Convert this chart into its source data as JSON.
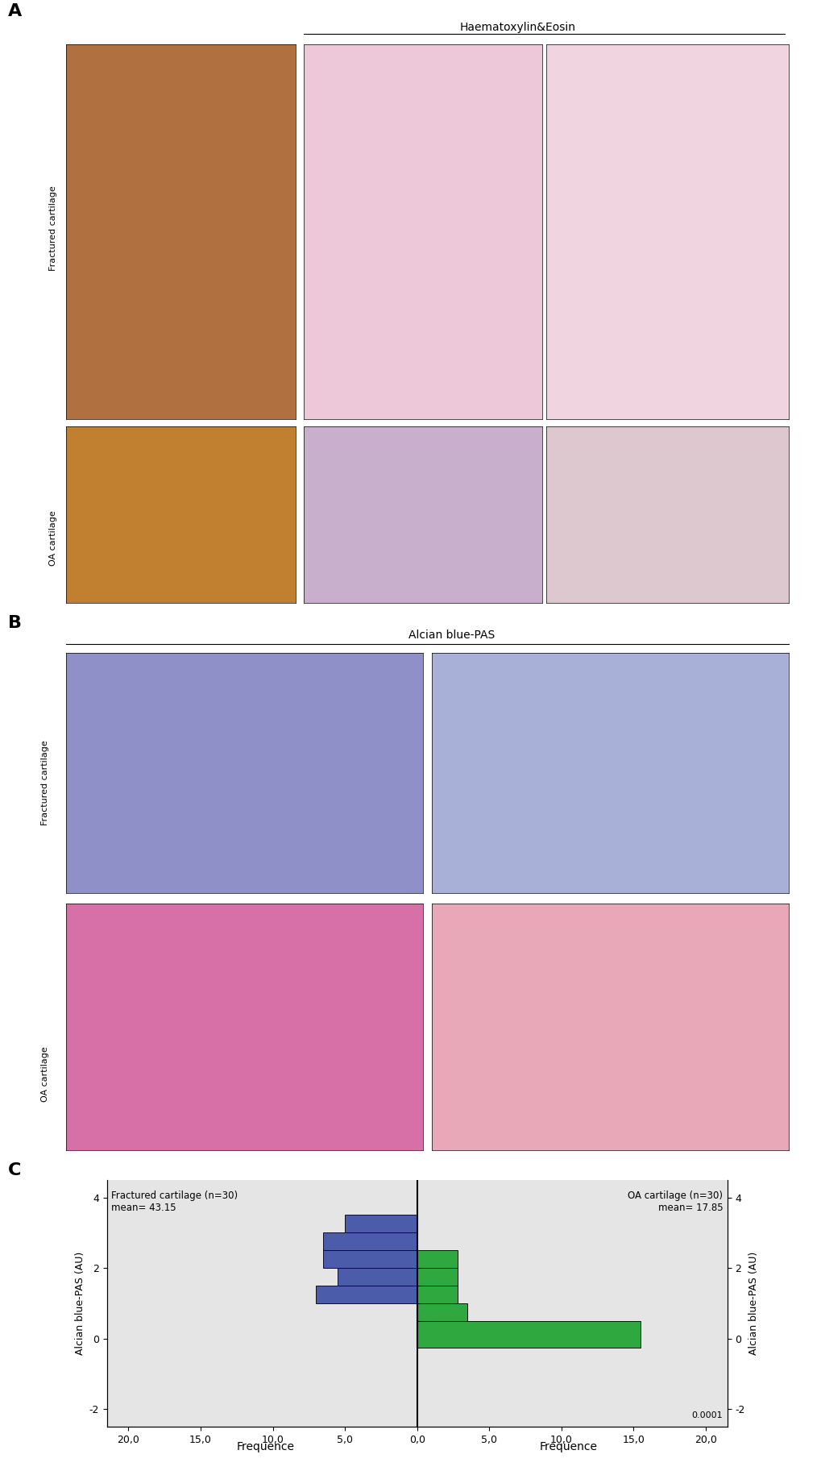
{
  "figsize": [
    10.2,
    18.25
  ],
  "dpi": 100,
  "panel_c": {
    "title_left": "Fractured cartilage (n=30)\nmean= 43.15",
    "title_right": "OA cartilage (n=30)\nmean= 17.85",
    "ylabel_left": "Alcian blue-PAS (AU)",
    "ylabel_right": "Alcian blue-PAS (AU)",
    "xlabel_left": "Frequence",
    "xlabel_right": "Frequence",
    "pvalue": "0.0001",
    "blue_color": "#4B5CAA",
    "green_color": "#30A840",
    "background_color": "#E5E5E5",
    "blue_bars": [
      {
        "y_lo": 3.0,
        "y_hi": 3.5,
        "freq": 5.0
      },
      {
        "y_lo": 2.5,
        "y_hi": 3.0,
        "freq": 6.5
      },
      {
        "y_lo": 2.0,
        "y_hi": 2.5,
        "freq": 6.5
      },
      {
        "y_lo": 1.5,
        "y_hi": 2.0,
        "freq": 5.5
      },
      {
        "y_lo": 1.0,
        "y_hi": 1.5,
        "freq": 7.0
      }
    ],
    "green_bars": [
      {
        "y_lo": 2.0,
        "y_hi": 2.5,
        "freq": 2.8
      },
      {
        "y_lo": 1.5,
        "y_hi": 2.0,
        "freq": 2.8
      },
      {
        "y_lo": 1.0,
        "y_hi": 1.5,
        "freq": 2.8
      },
      {
        "y_lo": 0.5,
        "y_hi": 1.0,
        "freq": 3.5
      },
      {
        "y_lo": -0.25,
        "y_hi": 0.5,
        "freq": 15.5
      }
    ],
    "ylim": [
      -2.5,
      4.5
    ],
    "xlim": 21.5,
    "yticks": [
      -2,
      0,
      2,
      4
    ],
    "xtick_positions": [
      -20,
      -15,
      -10,
      -5,
      0,
      5,
      10,
      15,
      20
    ],
    "xtick_labels": [
      "20,0",
      "15,0",
      "10,0",
      "5,0",
      "0,0",
      "5,0",
      "10,0",
      "15,0",
      "20,0"
    ]
  },
  "panel_a": {
    "label": "A",
    "he_header": "Haematoxylin&Eosin",
    "row1_label": "Fractured cartilage",
    "row2_label": "OA cartilage",
    "macro_frac_color": "#B07040",
    "macro_oa_color": "#C08030",
    "he_frac_low_color": "#ECC8D8",
    "he_frac_high_color": "#F0D5E0",
    "he_oa_low_color": "#C8B0CC",
    "he_oa_high_color": "#DEC8D0"
  },
  "panel_b": {
    "label": "B",
    "ab_header": "Alcian blue-PAS",
    "row1_label": "Fractured cartilage",
    "row2_label": "OA cartilage",
    "ab_frac_low_color": "#9090C8",
    "ab_frac_high_color": "#A8B0D8",
    "ab_oa_low_color": "#D870A8",
    "ab_oa_high_color": "#E8A8B8"
  }
}
